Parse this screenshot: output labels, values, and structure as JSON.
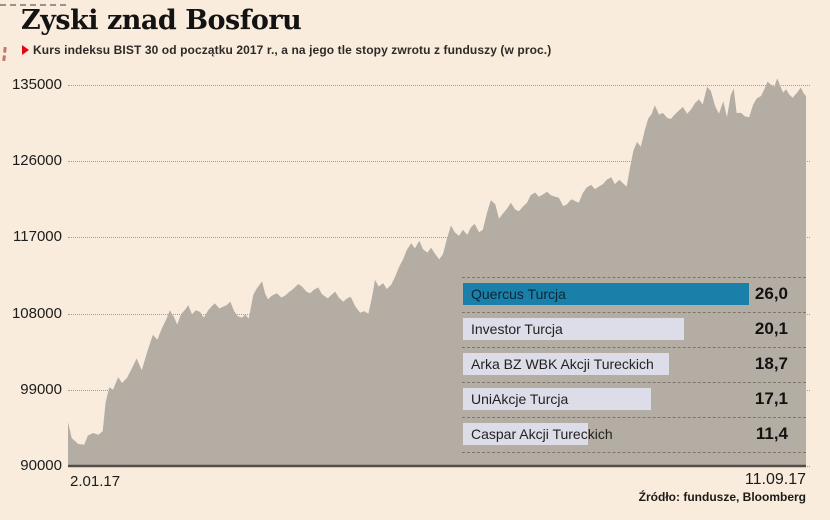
{
  "header": {
    "title": "Zyski znad Bosforu",
    "subtitle": "Kurs indeksu BIST 30 od początku 2017 r., a na jego tle stopy zwrotu z funduszy (w proc.)"
  },
  "footer": {
    "source": "Źródło: fundusze, Bloomberg"
  },
  "colors": {
    "background": "#f9ecdd",
    "area_fill": "#b4ada3",
    "baseline": "#534f48",
    "grid": "#a89c8d",
    "accent_bar": "#1b80a9",
    "bar_default": "#dcdde9",
    "red_marker": "#e30613"
  },
  "chart_data": {
    "type": "area",
    "title": "Zyski znad Bosforu",
    "subtitle": "Kurs indeksu BIST 30 od początku 2017 r., a na jego tle stopy zwrotu z funduszy (w proc.)",
    "series_name": "BIST 30",
    "xlabel": "",
    "ylabel": "",
    "ylim": [
      90000,
      135000
    ],
    "grid": "horizontal-dotted",
    "yticks": [
      {
        "value": 135000,
        "label": "135000"
      },
      {
        "value": 126000,
        "label": "126000"
      },
      {
        "value": 117000,
        "label": "117000"
      },
      {
        "value": 108000,
        "label": "108000"
      },
      {
        "value": 99000,
        "label": "99000"
      },
      {
        "value": 90000,
        "label": "90000"
      }
    ],
    "xticks": [
      {
        "pos": 0,
        "label": "2.01.17"
      },
      {
        "pos": 1,
        "label": "11.09.17"
      }
    ],
    "area_points": [
      [
        0,
        95200
      ],
      [
        0.005,
        93300
      ],
      [
        0.014,
        92600
      ],
      [
        0.022,
        92500
      ],
      [
        0.027,
        93600
      ],
      [
        0.034,
        93900
      ],
      [
        0.041,
        93700
      ],
      [
        0.047,
        94100
      ],
      [
        0.051,
        97500
      ],
      [
        0.056,
        99300
      ],
      [
        0.061,
        99000
      ],
      [
        0.068,
        100500
      ],
      [
        0.073,
        99800
      ],
      [
        0.08,
        100400
      ],
      [
        0.087,
        101600
      ],
      [
        0.093,
        102700
      ],
      [
        0.1,
        101300
      ],
      [
        0.107,
        103400
      ],
      [
        0.115,
        105500
      ],
      [
        0.121,
        104900
      ],
      [
        0.127,
        106200
      ],
      [
        0.133,
        107300
      ],
      [
        0.138,
        108400
      ],
      [
        0.144,
        107500
      ],
      [
        0.148,
        106700
      ],
      [
        0.153,
        107900
      ],
      [
        0.159,
        108500
      ],
      [
        0.163,
        109000
      ],
      [
        0.168,
        107900
      ],
      [
        0.173,
        108400
      ],
      [
        0.179,
        108200
      ],
      [
        0.184,
        107500
      ],
      [
        0.19,
        108400
      ],
      [
        0.195,
        108900
      ],
      [
        0.199,
        109200
      ],
      [
        0.205,
        108600
      ],
      [
        0.21,
        108800
      ],
      [
        0.215,
        109000
      ],
      [
        0.22,
        109400
      ],
      [
        0.225,
        108300
      ],
      [
        0.23,
        107700
      ],
      [
        0.236,
        107500
      ],
      [
        0.24,
        107900
      ],
      [
        0.245,
        107400
      ],
      [
        0.251,
        110200
      ],
      [
        0.256,
        111000
      ],
      [
        0.263,
        111800
      ],
      [
        0.267,
        110400
      ],
      [
        0.271,
        109700
      ],
      [
        0.276,
        110100
      ],
      [
        0.283,
        110400
      ],
      [
        0.289,
        109900
      ],
      [
        0.294,
        110100
      ],
      [
        0.299,
        110500
      ],
      [
        0.305,
        110900
      ],
      [
        0.312,
        111500
      ],
      [
        0.317,
        111200
      ],
      [
        0.323,
        110600
      ],
      [
        0.328,
        110400
      ],
      [
        0.333,
        110800
      ],
      [
        0.339,
        111100
      ],
      [
        0.344,
        110300
      ],
      [
        0.352,
        109800
      ],
      [
        0.358,
        110300
      ],
      [
        0.362,
        110600
      ],
      [
        0.367,
        109900
      ],
      [
        0.373,
        109400
      ],
      [
        0.378,
        109800
      ],
      [
        0.383,
        110000
      ],
      [
        0.389,
        108900
      ],
      [
        0.396,
        108100
      ],
      [
        0.401,
        108300
      ],
      [
        0.407,
        108000
      ],
      [
        0.412,
        110000
      ],
      [
        0.416,
        112000
      ],
      [
        0.421,
        111200
      ],
      [
        0.427,
        111600
      ],
      [
        0.432,
        110900
      ],
      [
        0.438,
        111400
      ],
      [
        0.443,
        112300
      ],
      [
        0.449,
        113600
      ],
      [
        0.454,
        114400
      ],
      [
        0.459,
        115500
      ],
      [
        0.465,
        116300
      ],
      [
        0.47,
        115700
      ],
      [
        0.476,
        116600
      ],
      [
        0.481,
        115600
      ],
      [
        0.487,
        115200
      ],
      [
        0.492,
        115800
      ],
      [
        0.497,
        115100
      ],
      [
        0.503,
        114400
      ],
      [
        0.508,
        115000
      ],
      [
        0.514,
        117000
      ],
      [
        0.519,
        118400
      ],
      [
        0.524,
        117600
      ],
      [
        0.53,
        117200
      ],
      [
        0.535,
        117900
      ],
      [
        0.541,
        117300
      ],
      [
        0.546,
        118200
      ],
      [
        0.551,
        118600
      ],
      [
        0.557,
        117600
      ],
      [
        0.562,
        117900
      ],
      [
        0.568,
        120000
      ],
      [
        0.573,
        121400
      ],
      [
        0.579,
        120900
      ],
      [
        0.584,
        119200
      ],
      [
        0.589,
        119800
      ],
      [
        0.595,
        120400
      ],
      [
        0.6,
        121100
      ],
      [
        0.606,
        120300
      ],
      [
        0.611,
        120100
      ],
      [
        0.617,
        120700
      ],
      [
        0.622,
        121100
      ],
      [
        0.627,
        122000
      ],
      [
        0.633,
        122300
      ],
      [
        0.638,
        121800
      ],
      [
        0.644,
        122100
      ],
      [
        0.649,
        122400
      ],
      [
        0.654,
        122000
      ],
      [
        0.66,
        121800
      ],
      [
        0.665,
        121700
      ],
      [
        0.671,
        120700
      ],
      [
        0.676,
        120900
      ],
      [
        0.682,
        121500
      ],
      [
        0.687,
        121300
      ],
      [
        0.692,
        121100
      ],
      [
        0.698,
        122300
      ],
      [
        0.703,
        122900
      ],
      [
        0.709,
        123200
      ],
      [
        0.714,
        122700
      ],
      [
        0.719,
        123000
      ],
      [
        0.725,
        123300
      ],
      [
        0.73,
        123800
      ],
      [
        0.736,
        124100
      ],
      [
        0.741,
        123300
      ],
      [
        0.747,
        123800
      ],
      [
        0.752,
        123400
      ],
      [
        0.757,
        123000
      ],
      [
        0.761,
        125000
      ],
      [
        0.766,
        127200
      ],
      [
        0.771,
        128300
      ],
      [
        0.776,
        127700
      ],
      [
        0.782,
        129800
      ],
      [
        0.786,
        131000
      ],
      [
        0.791,
        131600
      ],
      [
        0.795,
        132600
      ],
      [
        0.801,
        131500
      ],
      [
        0.806,
        131700
      ],
      [
        0.812,
        131100
      ],
      [
        0.817,
        131000
      ],
      [
        0.822,
        131500
      ],
      [
        0.828,
        132000
      ],
      [
        0.833,
        132400
      ],
      [
        0.839,
        131600
      ],
      [
        0.844,
        132100
      ],
      [
        0.85,
        132900
      ],
      [
        0.855,
        133300
      ],
      [
        0.86,
        132700
      ],
      [
        0.866,
        134800
      ],
      [
        0.871,
        134300
      ],
      [
        0.877,
        132500
      ],
      [
        0.882,
        131600
      ],
      [
        0.888,
        133100
      ],
      [
        0.893,
        131200
      ],
      [
        0.898,
        133800
      ],
      [
        0.902,
        134600
      ],
      [
        0.906,
        131700
      ],
      [
        0.912,
        131700
      ],
      [
        0.917,
        131300
      ],
      [
        0.923,
        131200
      ],
      [
        0.928,
        132600
      ],
      [
        0.933,
        133400
      ],
      [
        0.939,
        133700
      ],
      [
        0.944,
        134600
      ],
      [
        0.948,
        135400
      ],
      [
        0.953,
        135000
      ],
      [
        0.957,
        134800
      ],
      [
        0.961,
        135800
      ],
      [
        0.965,
        134900
      ],
      [
        0.969,
        134100
      ],
      [
        0.973,
        134500
      ],
      [
        0.977,
        133900
      ],
      [
        0.982,
        133500
      ],
      [
        0.988,
        134100
      ],
      [
        0.993,
        134700
      ],
      [
        0.997,
        134000
      ],
      [
        1,
        133700
      ]
    ],
    "funds": [
      {
        "name": "Quercus Turcja",
        "value": 26.0,
        "label": "26,0"
      },
      {
        "name": "Investor Turcja",
        "value": 20.1,
        "label": "20,1"
      },
      {
        "name": "Arka BZ WBK Akcji Tureckich",
        "value": 18.7,
        "label": "18,7"
      },
      {
        "name": "UniAkcje Turcja",
        "value": 17.1,
        "label": "17,1"
      },
      {
        "name": "Caspar Akcji Tureckich",
        "value": 11.4,
        "label": "11,4"
      }
    ]
  }
}
